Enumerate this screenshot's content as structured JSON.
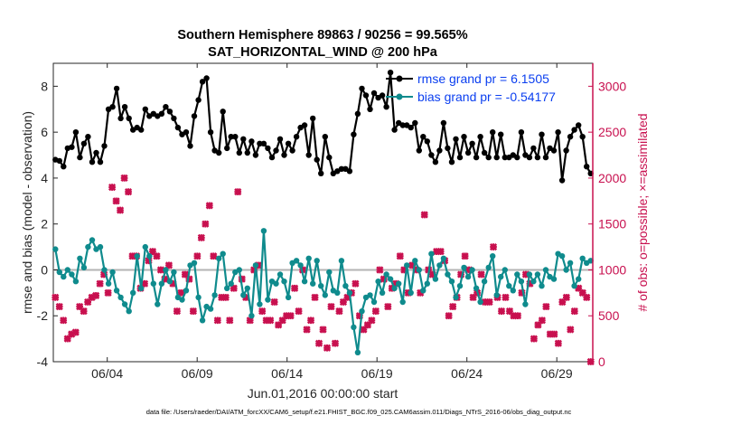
{
  "chart_data": {
    "type": "line",
    "title": "Southern Hemisphere 89863 / 90256 = 99.565%",
    "subtitle": "SAT_HORIZONTAL_WIND @ 200 hPa",
    "xlabel": "Jun.01,2016 00:00:00 start",
    "ylabel": "rmse and bias (model - observation)",
    "ylabel_right": "# of obs: o=possible; ×=assimilated",
    "x_ticks": [
      "06/04",
      "06/09",
      "06/14",
      "06/19",
      "06/24",
      "06/29"
    ],
    "y_ticks": [
      "-4",
      "-2",
      "0",
      "2",
      "4",
      "6",
      "8"
    ],
    "y_right_ticks": [
      "0",
      "500",
      "1000",
      "1500",
      "2000",
      "2500",
      "3000"
    ],
    "ylim": [
      -4,
      9
    ],
    "ylim_right": [
      0,
      3250
    ],
    "xlim_days": [
      1,
      31
    ],
    "grid": false,
    "legend_position": "top-right",
    "colors": {
      "rmse": "#000000",
      "bias": "#0f8b8d",
      "obs": "#c8104f",
      "legend_text": "#0b3ff0",
      "zero_line": "#b3b3b3"
    },
    "footnote": "data file: /Users/raeder/DAI/ATM_forcXX/CAM6_setup/f.e21.FHIST_BGC.f09_025.CAM6assim.011/Diags_NTrS_2016-06/obs_diag_output.nc",
    "series": [
      {
        "name": "rmse grand pr = 6.1505",
        "marker": "filled-circle",
        "values": [
          4.8,
          4.75,
          4.5,
          5.3,
          5.35,
          6.0,
          4.9,
          5.5,
          5.8,
          4.7,
          5.1,
          4.7,
          5.4,
          7.0,
          7.1,
          7.9,
          6.6,
          7.1,
          6.6,
          6.1,
          6.2,
          6.1,
          7.0,
          6.7,
          6.8,
          6.7,
          6.8,
          7.1,
          6.9,
          6.6,
          6.2,
          5.9,
          6.0,
          5.4,
          6.7,
          7.4,
          8.2,
          8.35,
          6.0,
          5.2,
          5.1,
          6.9,
          5.3,
          5.8,
          5.8,
          5.1,
          5.7,
          5.1,
          5.6,
          5.0,
          5.5,
          5.5,
          5.3,
          4.9,
          5.2,
          5.7,
          5.0,
          5.5,
          5.2,
          5.8,
          6.2,
          6.3,
          5.0,
          6.6,
          4.8,
          4.2,
          5.8,
          4.9,
          4.2,
          4.3,
          4.4,
          4.4,
          4.3,
          5.9,
          6.8,
          7.9,
          7.6,
          7.0,
          7.7,
          7.5,
          7.6,
          7.1,
          8.6,
          6.1,
          6.4,
          6.3,
          6.3,
          6.2,
          6.4,
          5.2,
          5.8,
          5.6,
          5.0,
          4.7,
          5.2,
          6.4,
          5.3,
          4.7,
          5.7,
          4.9,
          5.8,
          5.1,
          5.5,
          4.9,
          5.8,
          5.1,
          4.9,
          6.0,
          4.9,
          5.9,
          4.9,
          4.9,
          5.0,
          4.9,
          6.0,
          5.0,
          4.9,
          5.3,
          4.9,
          5.9,
          4.9,
          5.3,
          5.2,
          6.0,
          3.9,
          5.2,
          5.8,
          6.1,
          6.3,
          5.8,
          4.5,
          4.2
        ],
        "sampled_x": "uniform from 06/01 00Z to 07/01 00Z"
      },
      {
        "name": "bias grand pr = -0.54177",
        "marker": "filled-circle",
        "values": [
          0.9,
          -0.1,
          -0.3,
          0.0,
          -0.2,
          -0.5,
          0.5,
          0.1,
          1.0,
          1.3,
          0.9,
          1.0,
          0.0,
          -0.6,
          -0.1,
          -0.9,
          -1.2,
          -1.5,
          -1.8,
          -1.0,
          0.6,
          -0.8,
          1.0,
          0.6,
          -0.6,
          -1.5,
          -0.6,
          0.0,
          -0.5,
          -0.1,
          -1.2,
          -1.3,
          -0.9,
          0.2,
          0.3,
          -1.2,
          -2.2,
          -1.6,
          -1.7,
          -1.1,
          0.5,
          0.7,
          -0.8,
          -0.6,
          -0.1,
          0.0,
          -1.1,
          -0.8,
          -2.0,
          0.2,
          -1.5,
          1.7,
          -1.3,
          -0.5,
          -0.6,
          -0.2,
          -0.5,
          -1.2,
          0.3,
          0.4,
          0.2,
          -0.5,
          0.5,
          -0.6,
          0.4,
          -0.7,
          -1.1,
          -0.1,
          -0.9,
          -1.0,
          0.4,
          -0.7,
          -1.0,
          -2.5,
          -3.6,
          -1.8,
          -1.2,
          -1.1,
          -1.4,
          -0.5,
          -1.0,
          -0.2,
          -0.4,
          -0.8,
          -0.6,
          -1.4,
          0.2,
          -1.0,
          0.4,
          0.0,
          -0.9,
          -0.6,
          0.7,
          -0.4,
          0.2,
          0.5,
          -0.2,
          -0.5,
          -1.2,
          -0.7,
          0.1,
          -0.3,
          0.0,
          -0.8,
          -1.4,
          -0.5,
          0.1,
          0.6,
          -1.1,
          -0.3,
          0.0,
          -0.7,
          -0.9,
          -0.2,
          -0.5,
          -1.5,
          -0.2,
          -0.5,
          -0.2,
          -0.7,
          0.0,
          -0.3,
          -0.4,
          0.7,
          0.6,
          0.0,
          0.3,
          -0.7,
          -0.4,
          0.5,
          0.3,
          0.4
        ],
        "sampled_x": "uniform from 06/01 00Z to 07/01 00Z"
      },
      {
        "name": "obs assimilated",
        "marker": "x",
        "axis": "right",
        "values": [
          700,
          600,
          450,
          250,
          300,
          320,
          600,
          550,
          650,
          700,
          720,
          850,
          950,
          750,
          1900,
          1750,
          1650,
          2000,
          1850,
          1150,
          1150,
          800,
          850,
          1100,
          1200,
          1150,
          1000,
          900,
          1050,
          850,
          550,
          750,
          950,
          900,
          550,
          1150,
          1350,
          1500,
          1700,
          1150,
          450,
          700,
          700,
          450,
          800,
          1850,
          900,
          700,
          450,
          1000,
          1050,
          550,
          450,
          450,
          650,
          400,
          450,
          500,
          500,
          800,
          550,
          1000,
          350,
          450,
          700,
          200,
          350,
          150,
          600,
          200,
          550,
          650,
          700,
          750,
          850,
          500,
          350,
          400,
          450,
          550,
          1000,
          900,
          600,
          800,
          850,
          1150,
          1000,
          750,
          1050,
          1000,
          750,
          1600,
          1000,
          950,
          1200,
          1200,
          1100,
          500,
          600,
          700,
          950,
          1150,
          1000,
          700,
          750,
          950,
          650,
          650,
          1250,
          700,
          550,
          700,
          550,
          500,
          500,
          750,
          950,
          850,
          250,
          400,
          450,
          600,
          300,
          300,
          200,
          650,
          700,
          350,
          550,
          800,
          750,
          700,
          0
        ],
        "sampled_x": "uniform from 06/01 00Z to 07/01 00Z"
      }
    ]
  }
}
